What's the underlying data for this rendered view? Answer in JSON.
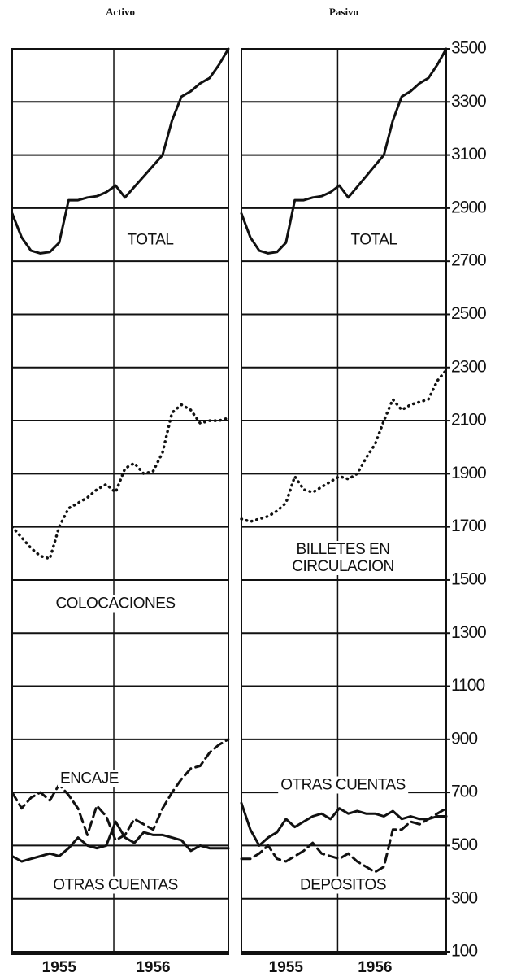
{
  "chart_data": [
    {
      "type": "line",
      "title": "Activo",
      "categories": [
        null,
        null,
        null,
        null,
        null,
        "1955",
        null,
        null,
        null,
        null,
        null,
        null,
        null,
        null,
        null,
        "1956",
        null,
        null,
        null,
        null,
        null,
        null,
        null,
        null
      ],
      "ylim": [
        100,
        3500
      ],
      "yticks": [
        100,
        300,
        500,
        700,
        900,
        1100,
        1300,
        1500,
        1700,
        1900,
        2100,
        2300,
        2500,
        2700,
        2900,
        3100,
        3300,
        3500
      ],
      "grid": true,
      "series": [
        {
          "name": "TOTAL",
          "color": "#111",
          "style": "solid",
          "values": [
            2880,
            2790,
            2740,
            2730,
            2735,
            2770,
            2930,
            2930,
            2940,
            2945,
            2960,
            2985,
            2940,
            2980,
            3020,
            3060,
            3100,
            3230,
            3320,
            3340,
            3370,
            3390,
            3440,
            3500
          ]
        },
        {
          "name": "COLOCACIONES",
          "color": "#111",
          "style": "dotted",
          "values": [
            1700,
            1660,
            1620,
            1590,
            1580,
            1700,
            1770,
            1790,
            1810,
            1840,
            1860,
            1830,
            1920,
            1940,
            1900,
            1910,
            1980,
            2130,
            2160,
            2140,
            2090,
            2100,
            2100,
            2110
          ]
        },
        {
          "name": "ENCAJE",
          "color": "#111",
          "style": "dashed",
          "values": [
            700,
            640,
            680,
            700,
            670,
            730,
            690,
            640,
            540,
            650,
            610,
            520,
            540,
            600,
            580,
            560,
            640,
            700,
            750,
            790,
            800,
            850,
            880,
            900
          ]
        },
        {
          "name": "OTRAS CUENTAS",
          "color": "#111",
          "style": "solid",
          "values": [
            460,
            440,
            450,
            460,
            470,
            460,
            490,
            530,
            500,
            490,
            500,
            590,
            530,
            510,
            550,
            540,
            540,
            530,
            520,
            480,
            500,
            490,
            490,
            490
          ]
        }
      ]
    },
    {
      "type": "line",
      "title": "Pasivo",
      "categories": [
        null,
        null,
        null,
        null,
        null,
        "1955",
        null,
        null,
        null,
        null,
        null,
        null,
        null,
        null,
        null,
        "1956",
        null,
        null,
        null,
        null,
        null,
        null,
        null,
        null
      ],
      "ylim": [
        100,
        3500
      ],
      "yticks": [
        100,
        300,
        500,
        700,
        900,
        1100,
        1300,
        1500,
        1700,
        1900,
        2100,
        2300,
        2500,
        2700,
        2900,
        3100,
        3300,
        3500
      ],
      "grid": true,
      "series": [
        {
          "name": "TOTAL",
          "color": "#111",
          "style": "solid",
          "values": [
            2880,
            2790,
            2740,
            2730,
            2735,
            2770,
            2930,
            2930,
            2940,
            2945,
            2960,
            2985,
            2940,
            2980,
            3020,
            3060,
            3100,
            3230,
            3320,
            3340,
            3370,
            3390,
            3440,
            3500
          ]
        },
        {
          "name": "BILLETES EN CIRCULACION",
          "color": "#111",
          "style": "dotted",
          "values": [
            1730,
            1720,
            1730,
            1740,
            1760,
            1790,
            1890,
            1840,
            1830,
            1850,
            1870,
            1890,
            1880,
            1900,
            1960,
            2010,
            2100,
            2180,
            2140,
            2160,
            2170,
            2180,
            2250,
            2290
          ]
        },
        {
          "name": "OTRAS CUENTAS",
          "color": "#111",
          "style": "solid",
          "values": [
            660,
            560,
            500,
            530,
            550,
            600,
            570,
            590,
            610,
            620,
            600,
            640,
            620,
            630,
            620,
            620,
            610,
            630,
            600,
            610,
            600,
            600,
            610,
            610
          ]
        },
        {
          "name": "DEPOSITOS",
          "color": "#111",
          "style": "dashed",
          "values": [
            450,
            450,
            470,
            500,
            450,
            440,
            460,
            480,
            510,
            470,
            460,
            450,
            470,
            440,
            420,
            400,
            420,
            560,
            560,
            590,
            580,
            600,
            620,
            640
          ]
        }
      ]
    }
  ]
}
